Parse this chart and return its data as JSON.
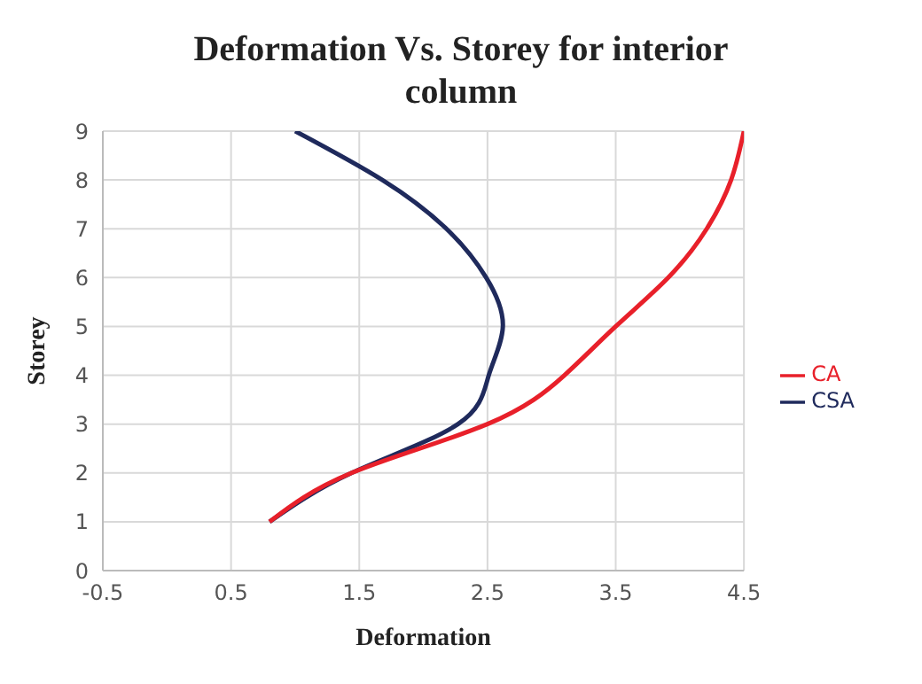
{
  "chart_data": {
    "type": "line",
    "title": "Deformation Vs. Storey for interior column",
    "xlabel": "Deformation",
    "ylabel": "Storey",
    "series": [
      {
        "name": "CSA",
        "color": "#1f2a5c",
        "x": [
          0.8,
          1.44,
          2.27,
          2.51,
          2.62,
          2.49,
          2.18,
          1.68,
          1.0
        ],
        "values": [
          1,
          2,
          3,
          4,
          5,
          6,
          7,
          8,
          9
        ]
      },
      {
        "name": "CA",
        "color": "#e8202a",
        "x": [
          0.8,
          1.44,
          2.5,
          3.1,
          3.5,
          3.91,
          4.21,
          4.4,
          4.5
        ],
        "values": [
          1,
          2,
          3,
          4,
          5,
          6,
          7,
          8,
          9
        ]
      }
    ],
    "xlim": [
      -0.5,
      4.5
    ],
    "xticks": [
      -0.5,
      0.5,
      1.5,
      2.5,
      3.5,
      4.5
    ],
    "ylim": [
      0,
      9
    ],
    "yticks": [
      0,
      1,
      2,
      3,
      4,
      5,
      6,
      7,
      8,
      9
    ],
    "grid": true,
    "legend": "right",
    "marker": "none",
    "line_style": "solid"
  }
}
